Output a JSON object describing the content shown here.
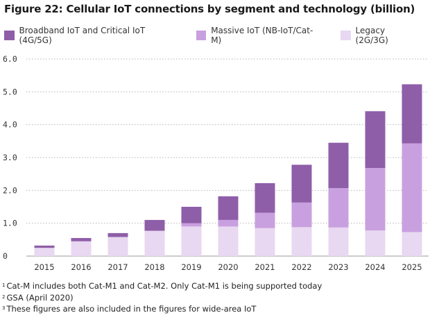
{
  "title": "Figure 22: Cellular IoT connections by segment and technology (billion)",
  "chart_data": {
    "type": "bar",
    "stacked": true,
    "categories": [
      "2015",
      "2016",
      "2017",
      "2018",
      "2019",
      "2020",
      "2021",
      "2022",
      "2023",
      "2024",
      "2025"
    ],
    "series": [
      {
        "name": "Legacy (2G/3G)",
        "color": "#e8d8f1",
        "values": [
          0.25,
          0.45,
          0.58,
          0.77,
          0.9,
          0.9,
          0.85,
          0.88,
          0.87,
          0.78,
          0.73
        ]
      },
      {
        "name": "Massive IoT (NB-IoT/Cat-M)",
        "color": "#c9a0df",
        "values": [
          0.0,
          0.0,
          0.0,
          0.0,
          0.1,
          0.2,
          0.47,
          0.75,
          1.2,
          1.9,
          2.7
        ]
      },
      {
        "name": "Broadband IoT and Critical IoT (4G/5G)",
        "color": "#8f5ea8",
        "values": [
          0.07,
          0.1,
          0.12,
          0.33,
          0.5,
          0.72,
          0.9,
          1.15,
          1.38,
          1.73,
          1.8
        ]
      }
    ],
    "legend_order": [
      2,
      1,
      0
    ],
    "ylim": [
      0,
      6
    ],
    "yticks": [
      "0",
      "1.0",
      "2.0",
      "3.0",
      "4.0",
      "5.0",
      "6.0"
    ],
    "grid": "horizontal dotted",
    "legend_position": "top-left"
  },
  "footnotes": [
    {
      "mark": "1",
      "text": "Cat-M includes both Cat-M1 and Cat-M2. Only Cat-M1 is being supported today"
    },
    {
      "mark": "2",
      "text": "GSA (April 2020)"
    },
    {
      "mark": "3",
      "text": "These figures are also included in the figures for wide-area IoT"
    }
  ]
}
